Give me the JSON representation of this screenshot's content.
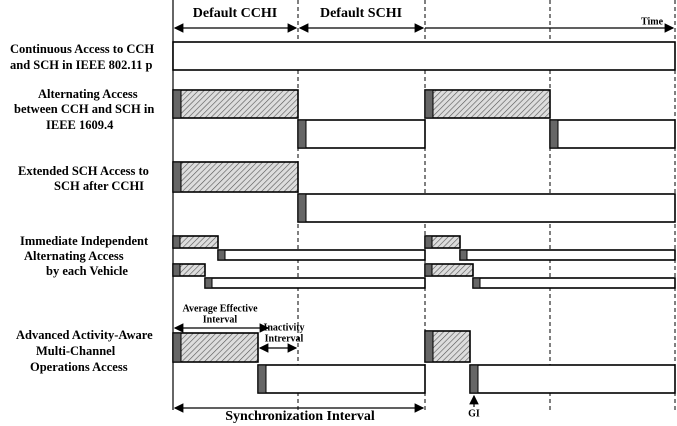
{
  "header": {
    "cchi": "Default CCHI",
    "schi": "Default SCHI",
    "time": "Time"
  },
  "rows": [
    {
      "label": [
        "Continuous Access to CCH",
        "and SCH in IEEE 802.11 p"
      ]
    },
    {
      "label": [
        "Alternating Access",
        "between CCH and SCH in",
        "IEEE 1609.4"
      ]
    },
    {
      "label": [
        "Extended SCH Access to",
        "SCH after CCHI"
      ]
    },
    {
      "label": [
        "Immediate Independent",
        "Alternating Access",
        "by each Vehicle"
      ]
    },
    {
      "label": [
        "Advanced Activity-Aware",
        "Multi-Channel",
        "Operations Access"
      ]
    }
  ],
  "annotations": {
    "average": [
      "Average Effective",
      "Interval"
    ],
    "inactivity": [
      "Inactivity",
      "Intrerval"
    ],
    "sync": "Synchronization Interval",
    "gi": "GI"
  }
}
